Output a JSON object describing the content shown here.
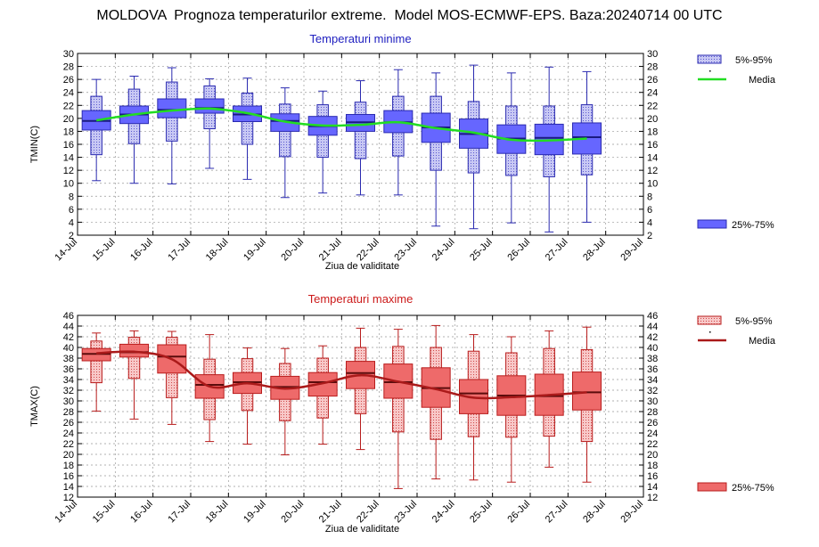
{
  "title": "MOLDOVA  Prognoza temperaturilor extreme.  Model MOS-ECMWF-EPS. Baza:20240714 00 UTC",
  "colors": {
    "min_fill": "#6666ff",
    "min_light": "#c8c8f4",
    "min_stroke": "#2a2ab0",
    "min_median": "#1a1a80",
    "min_mean": "#22dd22",
    "max_fill": "#ee6a6a",
    "max_light": "#f8c8c8",
    "max_stroke": "#b81c1c",
    "max_median": "#5a0c0c",
    "max_mean": "#aa1a1a"
  },
  "chart_data": [
    {
      "type": "boxplot",
      "title": "Temperaturi minime",
      "xlabel": "Ziua de validitate",
      "ylabel": "TMIN(C)",
      "ylim": [
        2,
        30
      ],
      "yticks": [
        2,
        4,
        6,
        8,
        10,
        12,
        14,
        16,
        18,
        20,
        22,
        24,
        26,
        28,
        30
      ],
      "xticks": [
        "14-Jul",
        "15-Jul",
        "16-Jul",
        "17-Jul",
        "18-Jul",
        "19-Jul",
        "20-Jul",
        "21-Jul",
        "22-Jul",
        "23-Jul",
        "24-Jul",
        "25-Jul",
        "26-Jul",
        "27-Jul",
        "28-Jul",
        "29-Jul"
      ],
      "legend": {
        "range_label": "5%-95%",
        "mean_label": "Media",
        "iqr_label": "25%-75%",
        "placement": "right"
      },
      "grid": true,
      "categories": [
        "15-Jul",
        "16-Jul",
        "17-Jul",
        "18-Jul",
        "19-Jul",
        "20-Jul",
        "21-Jul",
        "22-Jul",
        "23-Jul",
        "24-Jul",
        "25-Jul",
        "26-Jul",
        "27-Jul",
        "28-Jul"
      ],
      "series": [
        {
          "name": "min",
          "values": [
            10.4,
            10.0,
            9.9,
            12.3,
            10.6,
            7.8,
            8.5,
            8.2,
            8.2,
            3.4,
            3.0,
            3.9,
            2.5,
            4.0
          ]
        },
        {
          "name": "5%",
          "values": [
            14.4,
            16.1,
            16.5,
            18.4,
            16.0,
            14.1,
            14.0,
            13.8,
            14.2,
            12.0,
            11.6,
            11.2,
            11.0,
            11.3
          ]
        },
        {
          "name": "25%",
          "values": [
            18.2,
            19.2,
            20.1,
            20.8,
            19.5,
            18.0,
            17.4,
            18.0,
            17.8,
            16.3,
            15.4,
            14.6,
            14.4,
            14.5
          ]
        },
        {
          "name": "median",
          "values": [
            19.6,
            20.6,
            21.3,
            21.6,
            20.6,
            19.6,
            18.8,
            19.4,
            19.4,
            18.6,
            17.6,
            16.9,
            17.0,
            17.1
          ]
        },
        {
          "name": "75%",
          "values": [
            21.2,
            21.9,
            23.0,
            23.0,
            21.9,
            20.7,
            20.3,
            20.6,
            21.2,
            20.8,
            19.9,
            19.0,
            19.1,
            19.3
          ]
        },
        {
          "name": "95%",
          "values": [
            23.4,
            24.5,
            25.6,
            25.0,
            23.9,
            22.2,
            22.1,
            22.5,
            23.4,
            23.4,
            22.6,
            21.9,
            21.9,
            22.1
          ]
        },
        {
          "name": "max",
          "values": [
            26.0,
            26.5,
            27.8,
            26.1,
            26.2,
            24.7,
            24.2,
            25.8,
            27.5,
            27.0,
            28.2,
            27.0,
            27.9,
            27.2
          ]
        },
        {
          "name": "Media",
          "values": [
            19.7,
            20.6,
            21.2,
            21.5,
            20.8,
            19.5,
            18.9,
            19.0,
            19.4,
            18.5,
            17.8,
            16.7,
            16.6,
            16.9
          ]
        }
      ]
    },
    {
      "type": "boxplot",
      "title": "Temperaturi maxime",
      "xlabel": "Ziua de validitate",
      "ylabel": "TMAX(C)",
      "ylim": [
        12,
        46
      ],
      "yticks": [
        12,
        14,
        16,
        18,
        20,
        22,
        24,
        26,
        28,
        30,
        32,
        34,
        36,
        38,
        40,
        42,
        44,
        46
      ],
      "xticks": [
        "14-Jul",
        "15-Jul",
        "16-Jul",
        "17-Jul",
        "18-Jul",
        "19-Jul",
        "20-Jul",
        "21-Jul",
        "22-Jul",
        "23-Jul",
        "24-Jul",
        "25-Jul",
        "26-Jul",
        "27-Jul",
        "28-Jul",
        "29-Jul"
      ],
      "legend": {
        "range_label": "5%-95%",
        "mean_label": "Media",
        "iqr_label": "25%-75%",
        "placement": "right"
      },
      "grid": true,
      "categories": [
        "15-Jul",
        "16-Jul",
        "17-Jul",
        "18-Jul",
        "19-Jul",
        "20-Jul",
        "21-Jul",
        "22-Jul",
        "23-Jul",
        "24-Jul",
        "25-Jul",
        "26-Jul",
        "27-Jul",
        "28-Jul"
      ],
      "series": [
        {
          "name": "min",
          "values": [
            28.1,
            26.6,
            25.6,
            22.4,
            21.9,
            19.9,
            21.9,
            20.9,
            13.6,
            15.4,
            15.2,
            14.8,
            17.6,
            14.8
          ]
        },
        {
          "name": "5%",
          "values": [
            33.4,
            34.2,
            30.6,
            26.5,
            28.2,
            26.3,
            26.8,
            27.6,
            24.2,
            22.8,
            23.3,
            23.2,
            23.4,
            22.4
          ]
        },
        {
          "name": "25%",
          "values": [
            37.5,
            38.2,
            35.2,
            30.5,
            31.4,
            30.3,
            30.9,
            32.3,
            30.5,
            28.8,
            27.6,
            27.3,
            27.3,
            28.3
          ]
        },
        {
          "name": "median",
          "values": [
            38.8,
            39.1,
            38.3,
            33.0,
            33.5,
            32.6,
            33.5,
            35.2,
            33.5,
            32.4,
            31.4,
            31.0,
            30.9,
            31.6
          ]
        },
        {
          "name": "75%",
          "values": [
            39.8,
            40.6,
            40.5,
            34.9,
            35.3,
            34.6,
            35.3,
            37.4,
            36.9,
            36.2,
            34.0,
            34.7,
            35.0,
            35.4
          ]
        },
        {
          "name": "95%",
          "values": [
            41.2,
            41.9,
            41.9,
            37.8,
            37.9,
            37.0,
            38.0,
            40.0,
            40.2,
            40.0,
            39.3,
            39.0,
            39.8,
            39.6
          ]
        },
        {
          "name": "max",
          "values": [
            42.7,
            43.1,
            43.0,
            42.4,
            39.9,
            39.8,
            40.3,
            43.6,
            43.4,
            44.1,
            42.4,
            42.0,
            43.1,
            43.8
          ]
        },
        {
          "name": "Media",
          "values": [
            38.9,
            39.2,
            37.8,
            32.7,
            33.3,
            32.3,
            33.3,
            34.8,
            33.6,
            32.2,
            30.6,
            30.7,
            31.1,
            31.6
          ]
        }
      ]
    }
  ]
}
